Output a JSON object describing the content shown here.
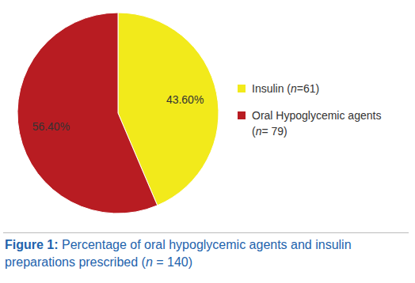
{
  "chart_data": {
    "type": "pie",
    "title": "Figure 1: Percentage of oral hypoglycemic agents and insulin preparations prescribed (n = 140)",
    "categories": [
      "Insulin (n=61)",
      "Oral Hypoglycemic agents (n= 79)"
    ],
    "values": [
      43.6,
      56.4
    ],
    "value_labels": [
      "43.60%",
      "56.40%"
    ],
    "colors": [
      "#f2ea1b",
      "#b81c22"
    ],
    "data_labels": true,
    "legend": "right"
  }
}
